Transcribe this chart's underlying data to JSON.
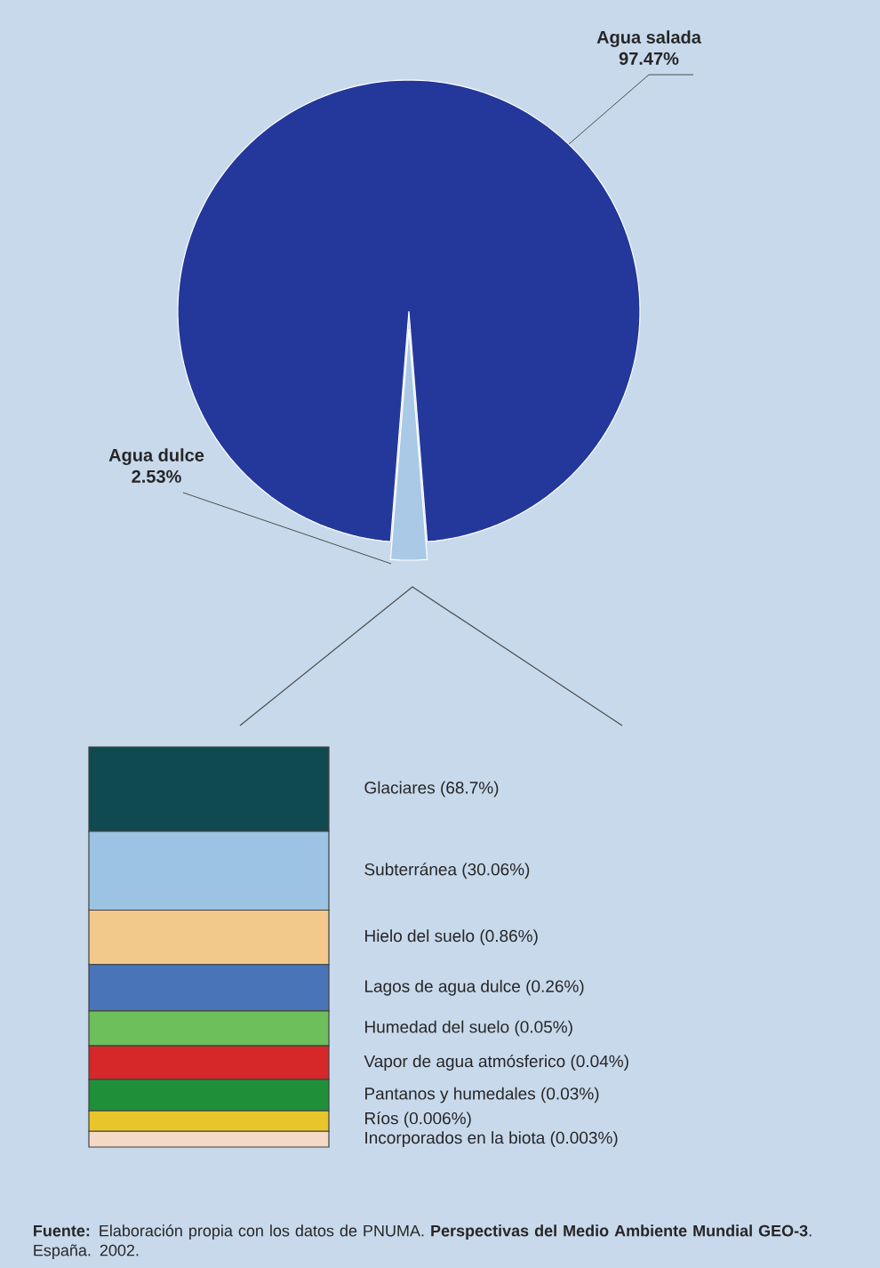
{
  "chart_data": [
    {
      "type": "pie",
      "categories": [
        "Agua salada",
        "Agua dulce"
      ],
      "values": [
        97.47,
        2.53
      ],
      "value_labels": [
        "97.47%",
        "2.53%"
      ],
      "colors": [
        "#23389a",
        "#a9c9e6"
      ]
    },
    {
      "type": "other",
      "categories": [
        "Glaciares",
        "Subterránea",
        "Hielo del suelo",
        "Lagos de agua dulce",
        "Humedad del suelo",
        "Vapor de agua atmósferico",
        "Pantanos y humedales",
        "Ríos",
        "Incorporados en la biota"
      ],
      "values": [
        68.7,
        30.06,
        0.86,
        0.26,
        0.05,
        0.04,
        0.03,
        0.006,
        0.003
      ],
      "value_labels": [
        "(68.7%)",
        "(30.06%)",
        "(0.86%)",
        "(0.26%)",
        "(0.05%)",
        "(0.04%)",
        "(0.03%)",
        "(0.006%)",
        "(0.003%)"
      ],
      "colors": [
        "#0f4a50",
        "#9cc3e3",
        "#f2c98a",
        "#4a74b8",
        "#6cbf5a",
        "#d62828",
        "#1f8f3a",
        "#e8c52a",
        "#f4d9c6"
      ],
      "annotations": [
        "**Fuente:** Elaboración propia con los datos de PNUMA. **Perspectivas del Medio Ambiente Mundial GEO-3**. España. 2002."
      ]
    }
  ]
}
